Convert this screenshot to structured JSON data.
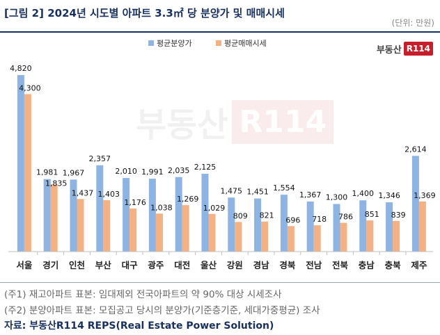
{
  "header": {
    "title": "[그림 2] 2024년 시도별 아파트 3.3㎡ 당 분양가 및 매매시세",
    "unit": "(단위: 만원)"
  },
  "logo": {
    "text": "부동산",
    "badge": "R114"
  },
  "watermark": {
    "text": "부동산",
    "badge": "R114"
  },
  "notes": {
    "note1": "(주1) 재고아파트 표본: 임대제외 전국아파트의 약 90% 대상 시세조사",
    "note2": "(주2) 분양아파트 표본: 모집공고 당시의 분양가(기준층기준, 세대가중평균) 조사",
    "source": "자료: 부동산R114 REPS(Real Estate Power Solution)"
  },
  "colors": {
    "presale": "#8db4e2",
    "market": "#f4b183",
    "title": "#17305f",
    "logo_red": "#c81e2b"
  },
  "chart_data": {
    "type": "bar",
    "title": "2024년 시도별 아파트 3.3㎡ 당 분양가 및 매매시세",
    "categories": [
      "서울",
      "경기",
      "인천",
      "부산",
      "대구",
      "광주",
      "대전",
      "울산",
      "강원",
      "경남",
      "경북",
      "전남",
      "전북",
      "충남",
      "충북",
      "제주"
    ],
    "series": [
      {
        "name": "평균분양가",
        "values": [
          4820,
          1981,
          1967,
          2357,
          2010,
          1991,
          2035,
          2125,
          1475,
          1451,
          1554,
          1367,
          1300,
          1400,
          1346,
          2614
        ]
      },
      {
        "name": "평균매매시세",
        "values": [
          4300,
          1835,
          1437,
          1403,
          1176,
          1038,
          1269,
          1029,
          809,
          821,
          696,
          718,
          786,
          851,
          839,
          1369
        ]
      }
    ],
    "ylim": [
      0,
      5200
    ],
    "legend": "top-center",
    "grid": false
  }
}
